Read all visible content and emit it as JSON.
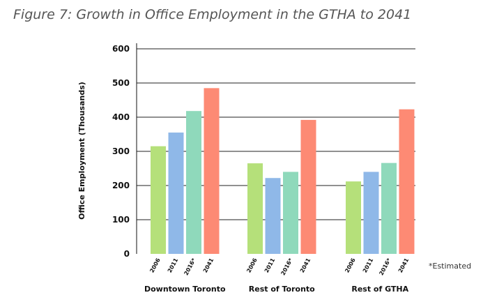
{
  "chart_data": {
    "type": "bar",
    "title": "Figure 7: Growth in Office Employment in the GTHA to 2041",
    "ylabel": "Office Employment (Thousands)",
    "xlabel": "",
    "ylim": [
      0,
      600
    ],
    "yticks": [
      0,
      100,
      200,
      300,
      400,
      500,
      600
    ],
    "grid": true,
    "groups": [
      "Downtown Toronto",
      "Rest of Toronto",
      "Rest of GTHA"
    ],
    "series": [
      {
        "name": "2006",
        "color": "#b5e07a",
        "values": [
          315,
          265,
          212
        ]
      },
      {
        "name": "2011",
        "color": "#8fb8e8",
        "values": [
          355,
          222,
          240
        ]
      },
      {
        "name": "2016*",
        "color": "#8fd9bb",
        "values": [
          418,
          240,
          266
        ]
      },
      {
        "name": "2041",
        "color": "#fd8a74",
        "values": [
          485,
          392,
          423
        ]
      }
    ],
    "footnote": "*Estimated"
  }
}
